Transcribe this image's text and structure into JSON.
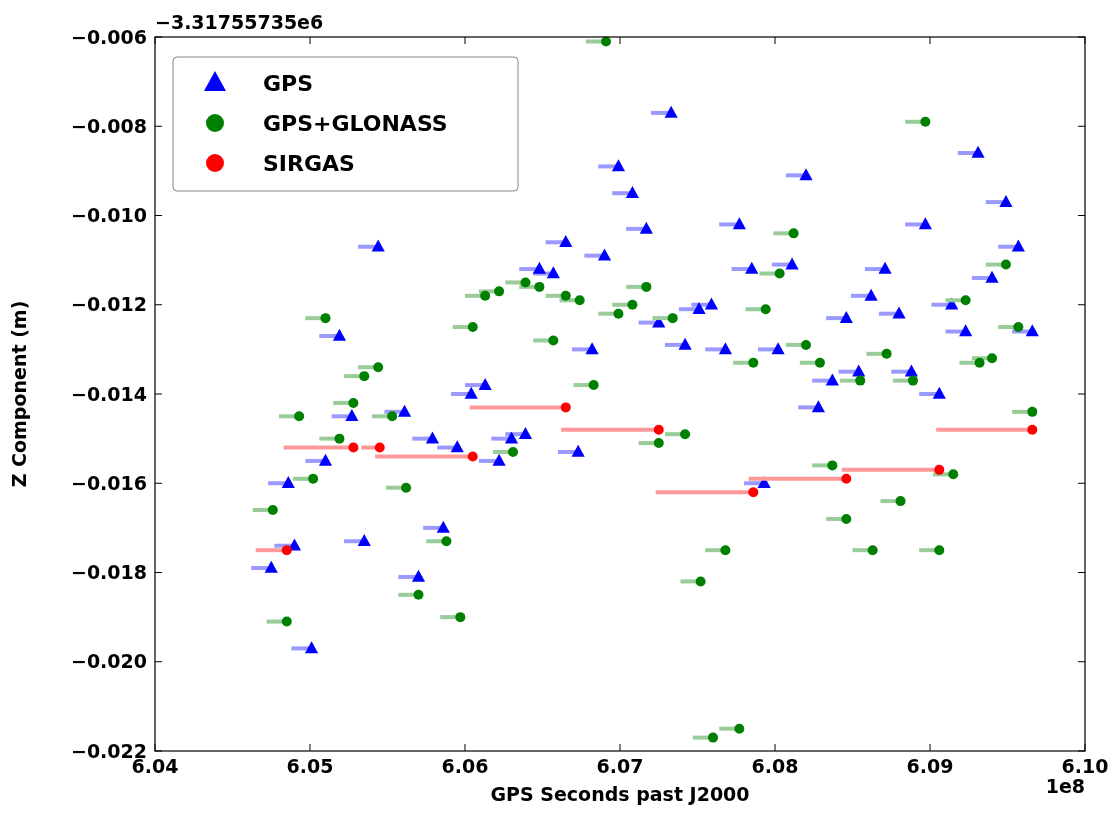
{
  "chart_data": {
    "type": "scatter",
    "xlabel": "GPS Seconds past J2000",
    "ylabel": "Z Component (m)",
    "xlim": [
      6.04,
      6.1
    ],
    "xticks": [
      {
        "value": 6.04,
        "label": "6.04"
      },
      {
        "value": 6.05,
        "label": "6.05"
      },
      {
        "value": 6.06,
        "label": "6.06"
      },
      {
        "value": 6.07,
        "label": "6.07"
      },
      {
        "value": 6.08,
        "label": "6.08"
      },
      {
        "value": 6.09,
        "label": "6.09"
      },
      {
        "value": 6.1,
        "label": "6.10"
      }
    ],
    "ylim": [
      -0.022,
      -0.006
    ],
    "yticks": [
      {
        "value": -0.022,
        "label": "−0.022"
      },
      {
        "value": -0.02,
        "label": "−0.020"
      },
      {
        "value": -0.018,
        "label": "−0.018"
      },
      {
        "value": -0.016,
        "label": "−0.016"
      },
      {
        "value": -0.014,
        "label": "−0.014"
      },
      {
        "value": -0.012,
        "label": "−0.012"
      },
      {
        "value": -0.01,
        "label": "−0.010"
      },
      {
        "value": -0.008,
        "label": "−0.008"
      },
      {
        "value": -0.006,
        "label": "−0.006"
      }
    ],
    "legend": "top left",
    "grid": false,
    "annotations": [
      "−3.31755735e6",
      "1e8"
    ],
    "series": [
      {
        "name": "GPS",
        "color": "#0000ff",
        "marker": "triangle",
        "x": [
          6.0475,
          6.0486,
          6.049,
          6.0501,
          6.051,
          6.0519,
          6.0527,
          6.0535,
          6.0544,
          6.0561,
          6.057,
          6.0579,
          6.0586,
          6.0595,
          6.0604,
          6.0613,
          6.0622,
          6.063,
          6.0639,
          6.0648,
          6.0657,
          6.0665,
          6.0673,
          6.0682,
          6.069,
          6.0699,
          6.0708,
          6.0717,
          6.0725,
          6.0733,
          6.0742,
          6.0751,
          6.0759,
          6.0768,
          6.0777,
          6.0785,
          6.0793,
          6.0802,
          6.0811,
          6.082,
          6.0828,
          6.0837,
          6.0846,
          6.0854,
          6.0862,
          6.0871,
          6.088,
          6.0888,
          6.0897,
          6.0906,
          6.0914,
          6.0923,
          6.0931,
          6.094,
          6.0949,
          6.0957,
          6.0966
        ],
        "values": [
          -0.0179,
          -0.016,
          -0.0174,
          -0.0197,
          -0.0155,
          -0.0127,
          -0.0145,
          -0.0173,
          -0.0107,
          -0.0144,
          -0.0181,
          -0.015,
          -0.017,
          -0.0152,
          -0.014,
          -0.0138,
          -0.0155,
          -0.015,
          -0.0149,
          -0.0112,
          -0.0113,
          -0.0106,
          -0.0153,
          -0.013,
          -0.0109,
          -0.0089,
          -0.0095,
          -0.0103,
          -0.0124,
          -0.0077,
          -0.0129,
          -0.0121,
          -0.012,
          -0.013,
          -0.0102,
          -0.0112,
          -0.016,
          -0.013,
          -0.0111,
          -0.0091,
          -0.0143,
          -0.0137,
          -0.0123,
          -0.0135,
          -0.0118,
          -0.0112,
          -0.0122,
          -0.0135,
          -0.0102,
          -0.014,
          -0.012,
          -0.0126,
          -0.0086,
          -0.0114,
          -0.0097,
          -0.0107,
          -0.0126
        ],
        "xerrors": [
          [
            6.0462,
            6.0475
          ],
          [
            6.0473,
            6.0486
          ],
          [
            6.0477,
            6.049
          ],
          [
            6.0488,
            6.0501
          ],
          [
            6.0497,
            6.051
          ],
          [
            6.0506,
            6.0519
          ],
          [
            6.0514,
            6.0527
          ],
          [
            6.0522,
            6.0535
          ],
          [
            6.0531,
            6.0544
          ],
          [
            6.0548,
            6.0561
          ],
          [
            6.0557,
            6.057
          ],
          [
            6.0566,
            6.0579
          ],
          [
            6.0573,
            6.0586
          ],
          [
            6.0582,
            6.0595
          ],
          [
            6.0591,
            6.0604
          ],
          [
            6.06,
            6.0613
          ],
          [
            6.0609,
            6.0622
          ],
          [
            6.0617,
            6.063
          ],
          [
            6.0626,
            6.0639
          ],
          [
            6.0635,
            6.0648
          ],
          [
            6.0644,
            6.0657
          ],
          [
            6.0652,
            6.0665
          ],
          [
            6.066,
            6.0673
          ],
          [
            6.0669,
            6.0682
          ],
          [
            6.0677,
            6.069
          ],
          [
            6.0686,
            6.0699
          ],
          [
            6.0695,
            6.0708
          ],
          [
            6.0704,
            6.0717
          ],
          [
            6.0712,
            6.0725
          ],
          [
            6.072,
            6.0733
          ],
          [
            6.0729,
            6.0742
          ],
          [
            6.0738,
            6.0751
          ],
          [
            6.0746,
            6.0759
          ],
          [
            6.0755,
            6.0768
          ],
          [
            6.0764,
            6.0777
          ],
          [
            6.0772,
            6.0785
          ],
          [
            6.078,
            6.0793
          ],
          [
            6.0789,
            6.0802
          ],
          [
            6.0798,
            6.0811
          ],
          [
            6.0807,
            6.082
          ],
          [
            6.0815,
            6.0828
          ],
          [
            6.0824,
            6.0837
          ],
          [
            6.0833,
            6.0846
          ],
          [
            6.0841,
            6.0854
          ],
          [
            6.0849,
            6.0862
          ],
          [
            6.0858,
            6.0871
          ],
          [
            6.0867,
            6.088
          ],
          [
            6.0875,
            6.0888
          ],
          [
            6.0884,
            6.0897
          ],
          [
            6.0893,
            6.0906
          ],
          [
            6.0901,
            6.0914
          ],
          [
            6.091,
            6.0923
          ],
          [
            6.0918,
            6.0931
          ],
          [
            6.0927,
            6.094
          ],
          [
            6.0936,
            6.0949
          ],
          [
            6.0944,
            6.0957
          ],
          [
            6.0953,
            6.0966
          ]
        ]
      },
      {
        "name": "GPS+GLONASS",
        "color": "#008000",
        "marker": "circle",
        "x": [
          6.0476,
          6.0485,
          6.0493,
          6.0502,
          6.051,
          6.0519,
          6.0528,
          6.0535,
          6.0544,
          6.0553,
          6.0562,
          6.057,
          6.0588,
          6.0597,
          6.0605,
          6.0613,
          6.0622,
          6.0631,
          6.0639,
          6.0648,
          6.0657,
          6.0665,
          6.0674,
          6.0683,
          6.0691,
          6.0699,
          6.0708,
          6.0717,
          6.0725,
          6.0734,
          6.0742,
          6.0752,
          6.076,
          6.0768,
          6.0777,
          6.0786,
          6.0794,
          6.0803,
          6.0812,
          6.082,
          6.0829,
          6.0837,
          6.0846,
          6.0855,
          6.0863,
          6.0872,
          6.0881,
          6.0889,
          6.0897,
          6.0906,
          6.0915,
          6.0923,
          6.0932,
          6.094,
          6.0949,
          6.0957,
          6.0966
        ],
        "values": [
          -0.0166,
          -0.0191,
          -0.0145,
          -0.0159,
          -0.0123,
          -0.015,
          -0.0142,
          -0.0136,
          -0.0134,
          -0.0145,
          -0.0161,
          -0.0185,
          -0.0173,
          -0.019,
          -0.0125,
          -0.0118,
          -0.0117,
          -0.0153,
          -0.0115,
          -0.0116,
          -0.0128,
          -0.0118,
          -0.0119,
          -0.0138,
          -0.0061,
          -0.0122,
          -0.012,
          -0.0116,
          -0.0151,
          -0.0123,
          -0.0149,
          -0.0182,
          -0.0217,
          -0.0175,
          -0.0215,
          -0.0133,
          -0.0121,
          -0.0113,
          -0.0104,
          -0.0129,
          -0.0133,
          -0.0156,
          -0.0168,
          -0.0137,
          -0.0175,
          -0.0131,
          -0.0164,
          -0.0137,
          -0.0079,
          -0.0175,
          -0.0158,
          -0.0119,
          -0.0133,
          -0.0132,
          -0.0111,
          -0.0125,
          -0.0144
        ],
        "xerrors": [
          [
            6.0463,
            6.0476
          ],
          [
            6.0472,
            6.0485
          ],
          [
            6.048,
            6.0493
          ],
          [
            6.0489,
            6.0502
          ],
          [
            6.0497,
            6.051
          ],
          [
            6.0506,
            6.0519
          ],
          [
            6.0515,
            6.0528
          ],
          [
            6.0522,
            6.0535
          ],
          [
            6.0531,
            6.0544
          ],
          [
            6.054,
            6.0553
          ],
          [
            6.0549,
            6.0562
          ],
          [
            6.0557,
            6.057
          ],
          [
            6.0575,
            6.0588
          ],
          [
            6.0584,
            6.0597
          ],
          [
            6.0592,
            6.0605
          ],
          [
            6.06,
            6.0613
          ],
          [
            6.0609,
            6.0622
          ],
          [
            6.0618,
            6.0631
          ],
          [
            6.0626,
            6.0639
          ],
          [
            6.0635,
            6.0648
          ],
          [
            6.0644,
            6.0657
          ],
          [
            6.0652,
            6.0665
          ],
          [
            6.0661,
            6.0674
          ],
          [
            6.067,
            6.0683
          ],
          [
            6.0678,
            6.0691
          ],
          [
            6.0686,
            6.0699
          ],
          [
            6.0695,
            6.0708
          ],
          [
            6.0704,
            6.0717
          ],
          [
            6.0712,
            6.0725
          ],
          [
            6.0721,
            6.0734
          ],
          [
            6.0729,
            6.0742
          ],
          [
            6.0739,
            6.0752
          ],
          [
            6.0747,
            6.076
          ],
          [
            6.0755,
            6.0768
          ],
          [
            6.0764,
            6.0777
          ],
          [
            6.0773,
            6.0786
          ],
          [
            6.0781,
            6.0794
          ],
          [
            6.079,
            6.0803
          ],
          [
            6.0799,
            6.0812
          ],
          [
            6.0807,
            6.082
          ],
          [
            6.0816,
            6.0829
          ],
          [
            6.0824,
            6.0837
          ],
          [
            6.0833,
            6.0846
          ],
          [
            6.0842,
            6.0855
          ],
          [
            6.085,
            6.0863
          ],
          [
            6.0859,
            6.0872
          ],
          [
            6.0868,
            6.0881
          ],
          [
            6.0876,
            6.0889
          ],
          [
            6.0884,
            6.0897
          ],
          [
            6.0893,
            6.0906
          ],
          [
            6.0902,
            6.0915
          ],
          [
            6.091,
            6.0923
          ],
          [
            6.0919,
            6.0932
          ],
          [
            6.0927,
            6.094
          ],
          [
            6.0936,
            6.0949
          ],
          [
            6.0944,
            6.0957
          ],
          [
            6.0953,
            6.0966
          ]
        ]
      },
      {
        "name": "SIRGAS",
        "color": "#ff0000",
        "marker": "circle",
        "x": [
          6.0485,
          6.0528,
          6.0545,
          6.0605,
          6.0665,
          6.0725,
          6.0786,
          6.0846,
          6.0906,
          6.0966
        ],
        "values": [
          -0.0175,
          -0.0152,
          -0.0152,
          -0.0154,
          -0.0143,
          -0.0148,
          -0.0162,
          -0.0159,
          -0.0157,
          -0.0148
        ],
        "xerrors": [
          [
            6.0465,
            6.0485
          ],
          [
            6.0483,
            6.0528
          ],
          [
            6.0533,
            6.0545
          ],
          [
            6.0542,
            6.0605
          ],
          [
            6.0603,
            6.0665
          ],
          [
            6.0662,
            6.0725
          ],
          [
            6.0723,
            6.0786
          ],
          [
            6.0783,
            6.0846
          ],
          [
            6.0843,
            6.0906
          ],
          [
            6.0904,
            6.0966
          ]
        ]
      }
    ]
  }
}
